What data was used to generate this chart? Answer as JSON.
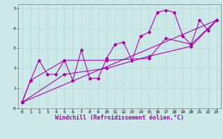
{
  "xlabel": "Windchill (Refroidissement éolien,°C)",
  "xlim": [
    -0.5,
    23.5
  ],
  "ylim": [
    0,
    5.2
  ],
  "xticks": [
    0,
    1,
    2,
    3,
    4,
    5,
    6,
    7,
    8,
    9,
    10,
    11,
    12,
    13,
    14,
    15,
    16,
    17,
    18,
    19,
    20,
    21,
    22,
    23
  ],
  "yticks": [
    0,
    1,
    2,
    3,
    4,
    5
  ],
  "bg_color": "#cde8e8",
  "line_color": "#aa00aa",
  "grid_color": "#b0d8d0",
  "line1_x": [
    0,
    1,
    2,
    3,
    4,
    5,
    6,
    7,
    8,
    9,
    10,
    11,
    12,
    13,
    14,
    15,
    16,
    17,
    18,
    19,
    20,
    21,
    22,
    23
  ],
  "line1_y": [
    0.3,
    1.4,
    2.4,
    1.7,
    1.7,
    2.4,
    1.4,
    2.9,
    1.5,
    1.5,
    2.5,
    3.2,
    3.3,
    2.4,
    3.6,
    3.8,
    4.8,
    4.9,
    4.8,
    3.6,
    3.2,
    4.4,
    3.9,
    4.4
  ],
  "line2_x": [
    0,
    23
  ],
  "line2_y": [
    0.3,
    4.4
  ],
  "line3_x": [
    0,
    1,
    5,
    10,
    15,
    17,
    20,
    23
  ],
  "line3_y": [
    0.3,
    1.4,
    2.4,
    2.4,
    2.5,
    3.5,
    3.2,
    4.4
  ],
  "line4_x": [
    0,
    5,
    10,
    15,
    20,
    23
  ],
  "line4_y": [
    0.3,
    1.7,
    2.0,
    2.6,
    3.1,
    4.4
  ],
  "marker": "D",
  "markersize": 2,
  "linewidth": 0.8,
  "tick_fontsize": 4.5,
  "xlabel_fontsize": 6.0
}
